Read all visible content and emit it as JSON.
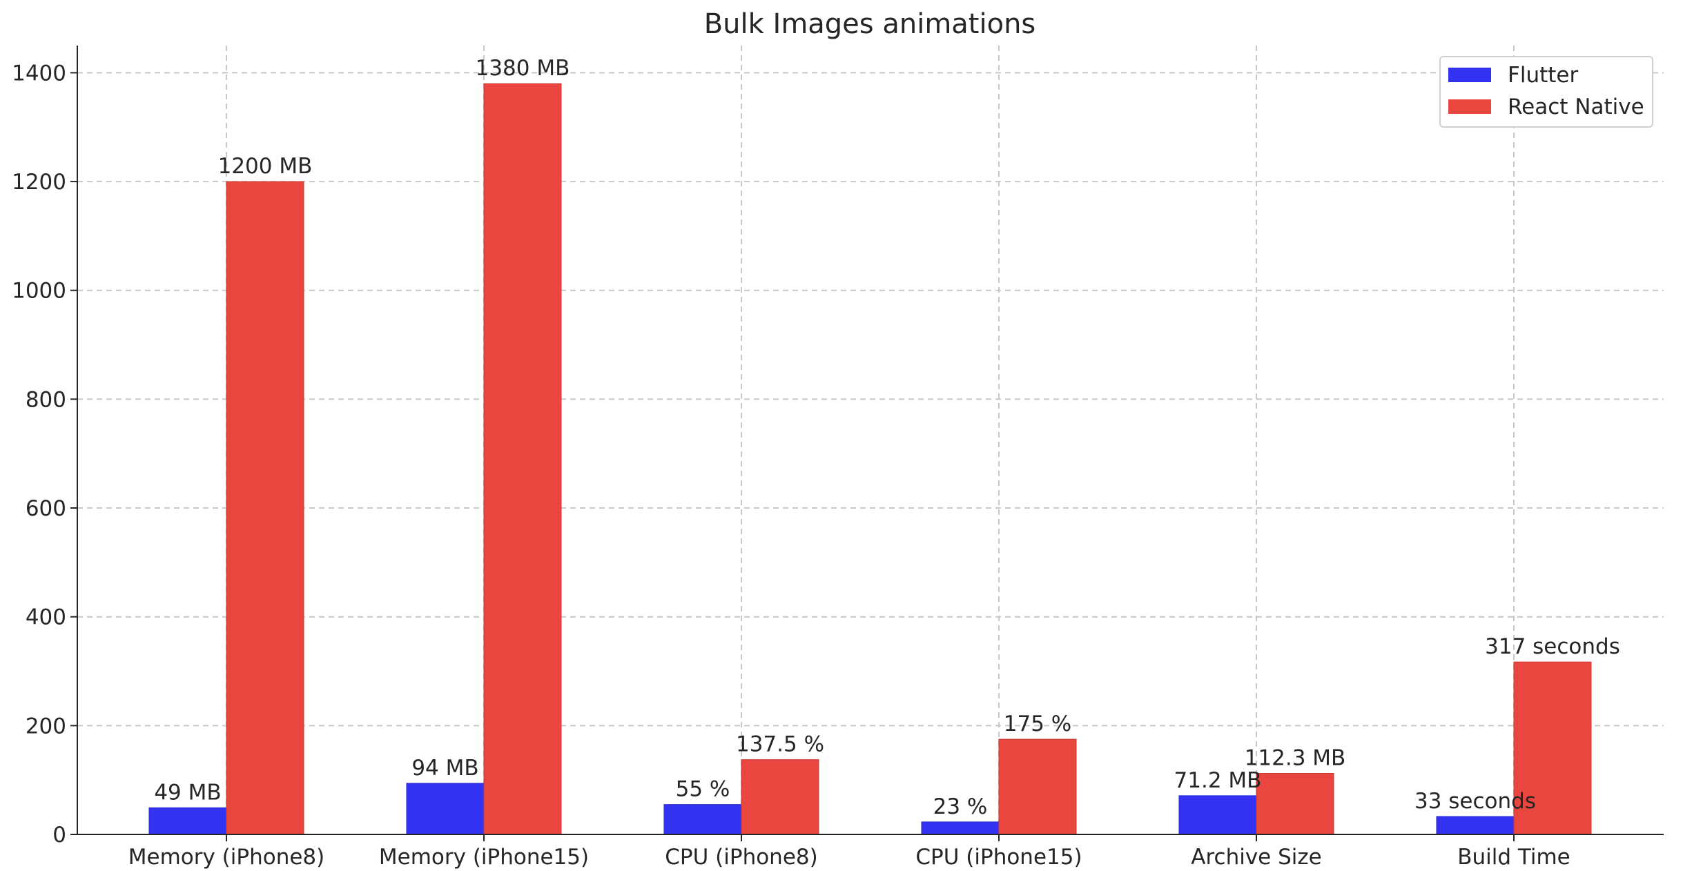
{
  "chart_data": {
    "type": "bar",
    "title": "Bulk Images animations",
    "xlabel": "",
    "ylabel": "",
    "ylim": [
      0,
      1450
    ],
    "yticks": [
      0,
      200,
      400,
      600,
      800,
      1000,
      1200,
      1400
    ],
    "grid": true,
    "legend_position": "top-right",
    "categories": [
      "Memory (iPhone8)",
      "Memory (iPhone15)",
      "CPU (iPhone8)",
      "CPU (iPhone15)",
      "Archive Size",
      "Build Time"
    ],
    "series": [
      {
        "name": "Flutter",
        "color": "#3232f0",
        "values": [
          49,
          94,
          55,
          23,
          71.2,
          33
        ],
        "labels": [
          "49 MB",
          "94 MB",
          "55 %",
          "23 %",
          "71.2 MB",
          "33 seconds"
        ]
      },
      {
        "name": "React Native",
        "color": "#e8463f",
        "values": [
          1200,
          1380,
          137.5,
          175,
          112.3,
          317
        ],
        "labels": [
          "1200 MB",
          "1380 MB",
          "137.5 %",
          "175 %",
          "112.3 MB",
          "317 seconds"
        ]
      }
    ]
  }
}
